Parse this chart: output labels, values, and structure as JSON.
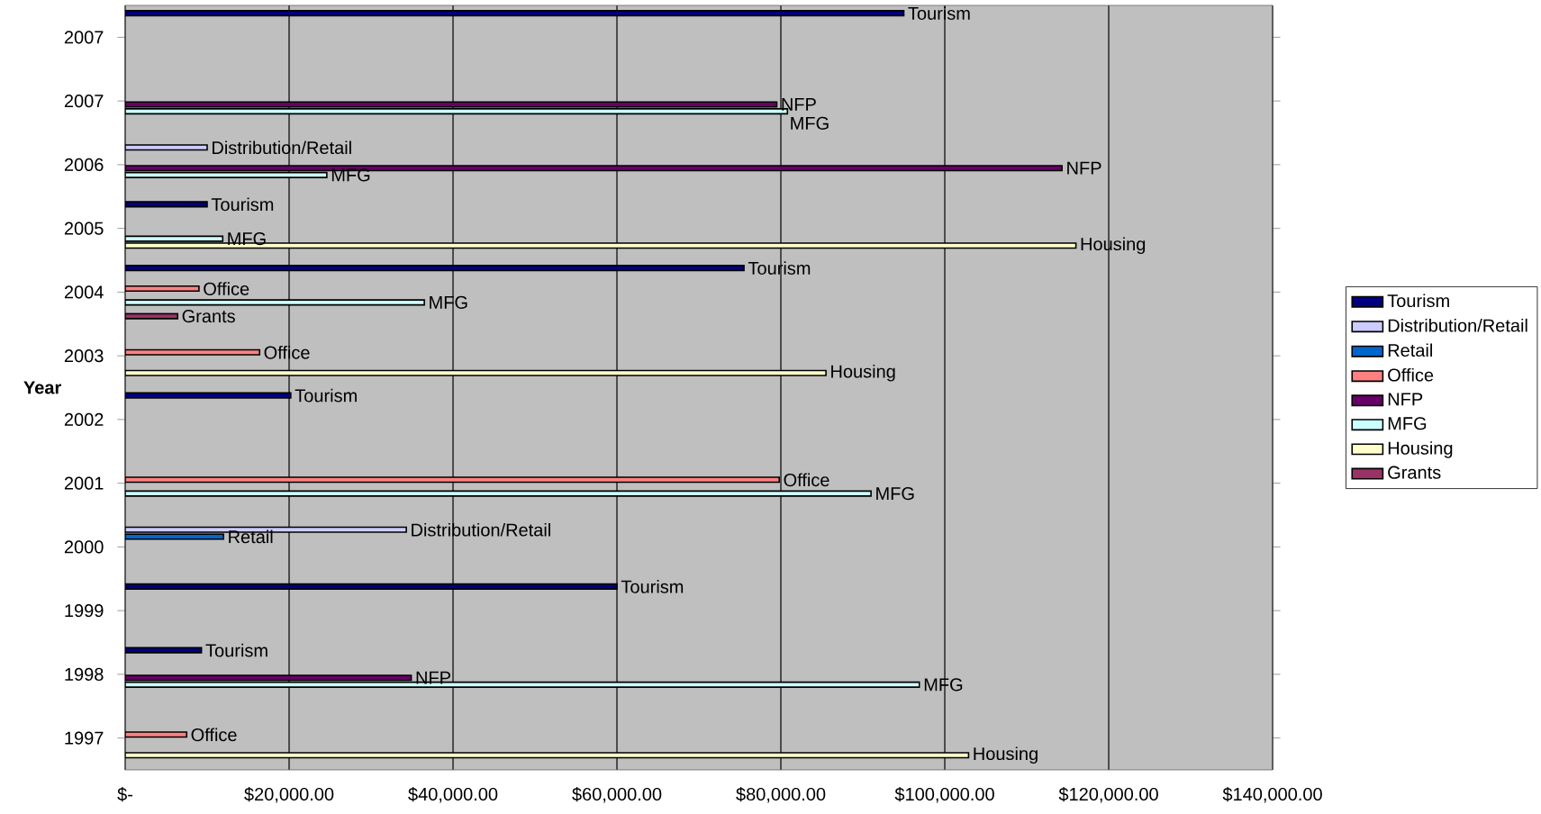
{
  "chart_data": {
    "type": "bar",
    "orientation": "horizontal",
    "ylabel": "Year",
    "categories": [
      "2007",
      "2007",
      "2006",
      "2005",
      "2004",
      "2003",
      "2002",
      "2001",
      "2000",
      "1999",
      "1998",
      "1997"
    ],
    "series": [
      {
        "name": "Tourism",
        "color": "#000080",
        "values": [
          95000,
          null,
          null,
          10000,
          75500,
          null,
          20200,
          null,
          null,
          60000,
          9300,
          null
        ],
        "value_labels": [
          "Tourism",
          null,
          null,
          "Tourism",
          "Tourism",
          null,
          "Tourism",
          null,
          null,
          "Tourism",
          "Tourism",
          null
        ]
      },
      {
        "name": "Distribution/Retail",
        "color": "#ccccff",
        "values": [
          null,
          null,
          10000,
          null,
          null,
          null,
          null,
          null,
          34300,
          null,
          null,
          null
        ],
        "value_labels": [
          null,
          null,
          "Distribution/Retail",
          null,
          null,
          null,
          null,
          null,
          "Distribution/Retail",
          null,
          null,
          null
        ]
      },
      {
        "name": "Retail",
        "color": "#0066cc",
        "values": [
          null,
          null,
          null,
          null,
          null,
          null,
          null,
          null,
          12000,
          null,
          null,
          null
        ],
        "value_labels": [
          null,
          null,
          null,
          null,
          null,
          null,
          null,
          null,
          "Retail",
          null,
          null,
          null
        ]
      },
      {
        "name": "Office",
        "color": "#ff8080",
        "values": [
          null,
          null,
          null,
          null,
          9000,
          16400,
          null,
          79800,
          null,
          null,
          null,
          7500
        ],
        "value_labels": [
          null,
          null,
          null,
          null,
          "Office",
          "Office",
          null,
          "Office",
          null,
          null,
          null,
          "Office"
        ]
      },
      {
        "name": "NFP",
        "color": "#660066",
        "values": [
          null,
          79500,
          114300,
          null,
          null,
          null,
          null,
          null,
          null,
          null,
          34900,
          null
        ],
        "value_labels": [
          null,
          "NFP",
          "NFP",
          null,
          null,
          null,
          null,
          null,
          null,
          null,
          "NFP",
          null
        ]
      },
      {
        "name": "MFG",
        "color": "#ccffff",
        "values": [
          null,
          80800,
          24600,
          11900,
          36500,
          null,
          null,
          91000,
          null,
          null,
          96900,
          null
        ],
        "value_labels": [
          null,
          "MFG",
          "MFG",
          "MFG",
          "MFG",
          null,
          null,
          "MFG",
          null,
          null,
          "MFG",
          null
        ]
      },
      {
        "name": "Housing",
        "color": "#ffffcc",
        "values": [
          null,
          null,
          null,
          116000,
          null,
          85500,
          null,
          null,
          null,
          null,
          null,
          102900
        ],
        "value_labels": [
          null,
          null,
          null,
          "Housing",
          null,
          "Housing",
          null,
          null,
          null,
          null,
          null,
          "Housing"
        ]
      },
      {
        "name": "Grants",
        "color": "#993366",
        "values": [
          null,
          null,
          null,
          null,
          6400,
          null,
          null,
          null,
          null,
          null,
          null,
          null
        ],
        "value_labels": [
          null,
          null,
          null,
          null,
          "Grants",
          null,
          null,
          null,
          null,
          null,
          null,
          null
        ]
      }
    ],
    "xlim": [
      0,
      140000
    ],
    "xticks": [
      {
        "value": 0,
        "label": "$-"
      },
      {
        "value": 20000,
        "label": "$20,000.00"
      },
      {
        "value": 40000,
        "label": "$40,000.00"
      },
      {
        "value": 60000,
        "label": "$60,000.00"
      },
      {
        "value": 80000,
        "label": "$80,000.00"
      },
      {
        "value": 100000,
        "label": "$100,000.00"
      },
      {
        "value": 120000,
        "label": "$120,000.00"
      },
      {
        "value": 140000,
        "label": "$140,000.00"
      }
    ],
    "grid": "x",
    "legend": "right"
  }
}
